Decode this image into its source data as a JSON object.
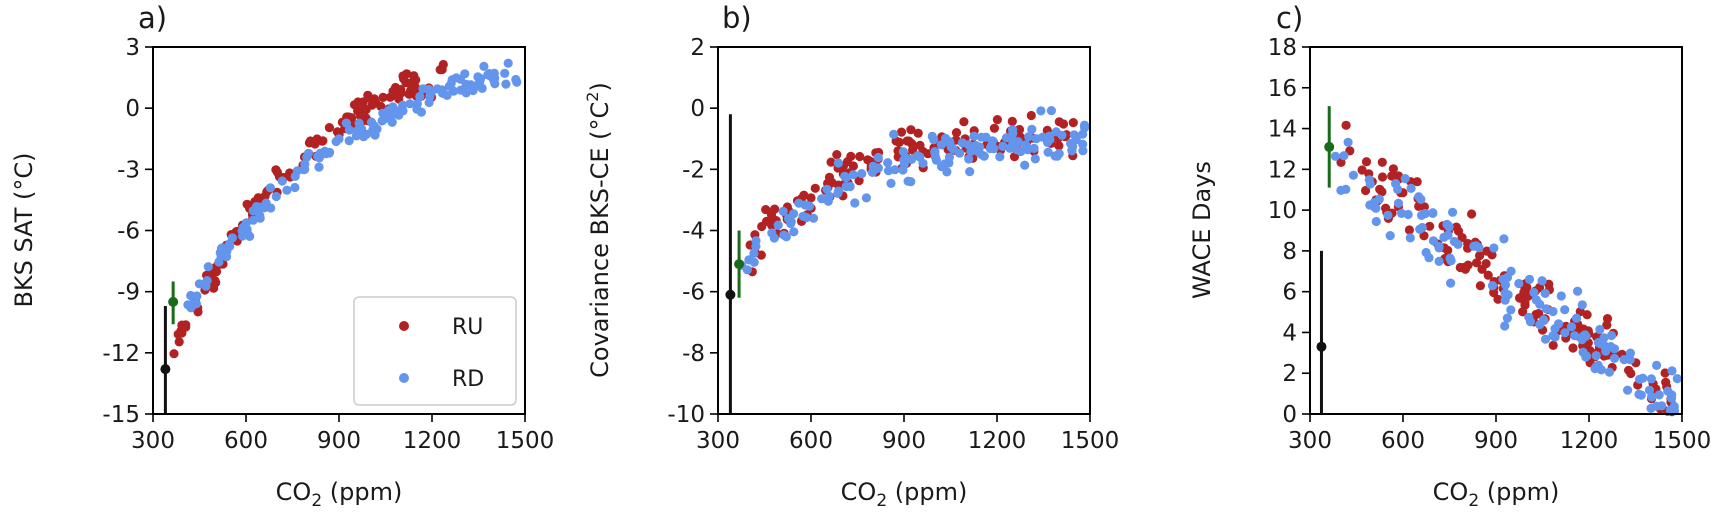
{
  "figure": {
    "background": "#ffffff"
  },
  "colors": {
    "RU": "#b22222",
    "RD": "#6495ed",
    "obs_black": "#111111",
    "obs_green": "#1a6b1a"
  },
  "chart_data": [
    {
      "type": "scatter",
      "panel_label": "a)",
      "xlabel_main": "CO",
      "xlabel_sub": "2",
      "xlabel_tail": " (ppm)",
      "ylabel": "BKS SAT (°C)",
      "xlim": [
        300,
        1500
      ],
      "ylim": [
        -15,
        3
      ],
      "xticks": [
        "300",
        "600",
        "900",
        "1200",
        "1500"
      ],
      "yticks": [
        "3",
        "0",
        "-3",
        "-6",
        "-9",
        "-12",
        "-15"
      ],
      "legend": {
        "placement": "lower right",
        "entries": [
          "RU",
          "RD"
        ]
      },
      "series": [
        {
          "name": "RU",
          "color": "#b22222",
          "curve": {
            "x0": 360,
            "x1": 1240,
            "a": -12.3,
            "b": 1.6,
            "k": 0.0023
          },
          "spread": 0.55,
          "n": 130
        },
        {
          "name": "RD",
          "color": "#6495ed",
          "curve": {
            "x0": 390,
            "x1": 1490,
            "a": -10.3,
            "b": 2.0,
            "k": 0.0018
          },
          "spread": 0.45,
          "n": 140
        }
      ],
      "observations": [
        {
          "x": 340,
          "y": -12.8,
          "low": -15.0,
          "high": -9.7,
          "color": "#111111"
        },
        {
          "x": 365,
          "y": -9.5,
          "low": -10.6,
          "high": -8.5,
          "color": "#1a6b1a"
        }
      ]
    },
    {
      "type": "scatter",
      "panel_label": "b)",
      "xlabel_main": "CO",
      "xlabel_sub": "2",
      "xlabel_tail": " (ppm)",
      "ylabel_main": "Covariance BKS-CE (°C",
      "ylabel_sup": "2",
      "ylabel_tail": ")",
      "xlim": [
        300,
        1500
      ],
      "ylim": [
        -10,
        2
      ],
      "xticks": [
        "300",
        "600",
        "900",
        "1200",
        "1500"
      ],
      "yticks": [
        "2",
        "0",
        "-2",
        "-4",
        "-6",
        "-8",
        "-10"
      ],
      "series": [
        {
          "name": "RU",
          "color": "#b22222",
          "curve": {
            "x0": 380,
            "x1": 1460,
            "a": -5.2,
            "b": -0.9,
            "k": 0.0035
          },
          "spread": 0.55,
          "n": 140
        },
        {
          "name": "RD",
          "color": "#6495ed",
          "curve": {
            "x0": 370,
            "x1": 1490,
            "a": -5.6,
            "b": -1.0,
            "k": 0.0032
          },
          "spread": 0.6,
          "n": 140
        }
      ],
      "observations": [
        {
          "x": 340,
          "y": -6.1,
          "low": -10.0,
          "high": -0.2,
          "color": "#111111"
        },
        {
          "x": 368,
          "y": -5.1,
          "low": -6.2,
          "high": -4.0,
          "color": "#1a6b1a"
        }
      ]
    },
    {
      "type": "scatter",
      "panel_label": "c)",
      "xlabel_main": "CO",
      "xlabel_sub": "2",
      "xlabel_tail": " (ppm)",
      "ylabel": "WACE Days",
      "xlim": [
        300,
        1500
      ],
      "ylim": [
        0,
        18
      ],
      "xticks": [
        "300",
        "600",
        "900",
        "1200",
        "1500"
      ],
      "yticks": [
        "18",
        "16",
        "14",
        "12",
        "10",
        "8",
        "6",
        "4",
        "2",
        "0"
      ],
      "series": [
        {
          "name": "RU",
          "color": "#b22222",
          "linear": {
            "x0": 380,
            "x1": 1470,
            "y0": 12.8,
            "y1": 0.6
          },
          "spread": 1.4,
          "n": 140
        },
        {
          "name": "RD",
          "color": "#6495ed",
          "linear": {
            "x0": 380,
            "x1": 1490,
            "y0": 12.5,
            "y1": 0.3
          },
          "spread": 1.4,
          "n": 140
        }
      ],
      "observations": [
        {
          "x": 337,
          "y": 3.3,
          "low": 0.0,
          "high": 8.0,
          "color": "#111111"
        },
        {
          "x": 362,
          "y": 13.1,
          "low": 11.1,
          "high": 15.1,
          "color": "#1a6b1a"
        }
      ]
    }
  ]
}
